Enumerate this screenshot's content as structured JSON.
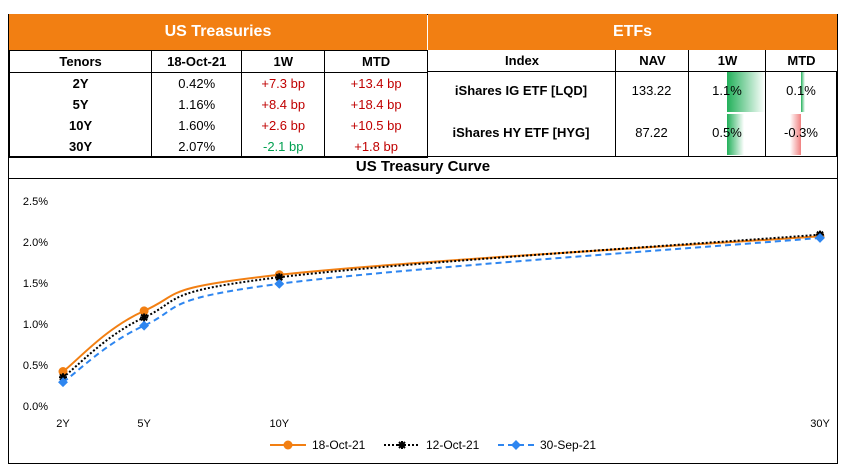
{
  "treasuries": {
    "title": "US Treasuries",
    "columns": [
      "Tenors",
      "18-Oct-21",
      "1W",
      "MTD"
    ],
    "rows": [
      {
        "tenor": "2Y",
        "yield": "0.42%",
        "w1": "+7.3 bp",
        "mtd": "+13.4 bp",
        "w1_color": "red"
      },
      {
        "tenor": "5Y",
        "yield": "1.16%",
        "w1": "+8.4 bp",
        "mtd": "+18.4 bp",
        "w1_color": "red"
      },
      {
        "tenor": "10Y",
        "yield": "1.60%",
        "w1": "+2.6 bp",
        "mtd": "+10.5 bp",
        "w1_color": "red"
      },
      {
        "tenor": "30Y",
        "yield": "2.07%",
        "w1": "-2.1 bp",
        "mtd": "+1.8 bp",
        "w1_color": "green"
      }
    ]
  },
  "etfs": {
    "title": "ETFs",
    "columns": [
      "Index",
      "NAV",
      "1W",
      "MTD"
    ],
    "rows": [
      {
        "index": "iShares IG ETF [LQD]",
        "nav": "133.22",
        "w1": "1.1%",
        "mtd": "0.1%",
        "w1_fraction": 0.5,
        "mtd_fraction": 0.05,
        "w1_positive": true,
        "mtd_positive": true
      },
      {
        "index": "iShares HY ETF [HYG]",
        "nav": "87.22",
        "w1": "0.5%",
        "mtd": "-0.3%",
        "w1_fraction": 0.23,
        "mtd_fraction": 0.15,
        "w1_positive": true,
        "mtd_positive": false
      }
    ]
  },
  "colors": {
    "accent": "#f27f12",
    "neg": "#c00000",
    "pos": "#00a050",
    "bar_green": "#22b05a",
    "bar_red": "#f08080"
  },
  "chart_data": {
    "type": "line",
    "title": "US Treasury Curve",
    "x": [
      "2Y",
      "5Y",
      "10Y",
      "30Y"
    ],
    "x_years": [
      2,
      5,
      10,
      30
    ],
    "y_ticks": [
      "0.0%",
      "0.5%",
      "1.0%",
      "1.5%",
      "2.0%",
      "2.5%"
    ],
    "ylim": [
      0,
      2.5
    ],
    "grid": false,
    "legend": "bottom",
    "series": [
      {
        "name": "18-Oct-21",
        "values": [
          0.42,
          1.16,
          1.6,
          2.07
        ],
        "color": "#f27f12",
        "style": "solid"
      },
      {
        "name": "12-Oct-21",
        "values": [
          0.35,
          1.08,
          1.57,
          2.09
        ],
        "color": "#000000",
        "style": "dotted"
      },
      {
        "name": "30-Sep-21",
        "values": [
          0.29,
          0.98,
          1.49,
          2.05
        ],
        "color": "#2e86f0",
        "style": "dashed"
      }
    ]
  }
}
